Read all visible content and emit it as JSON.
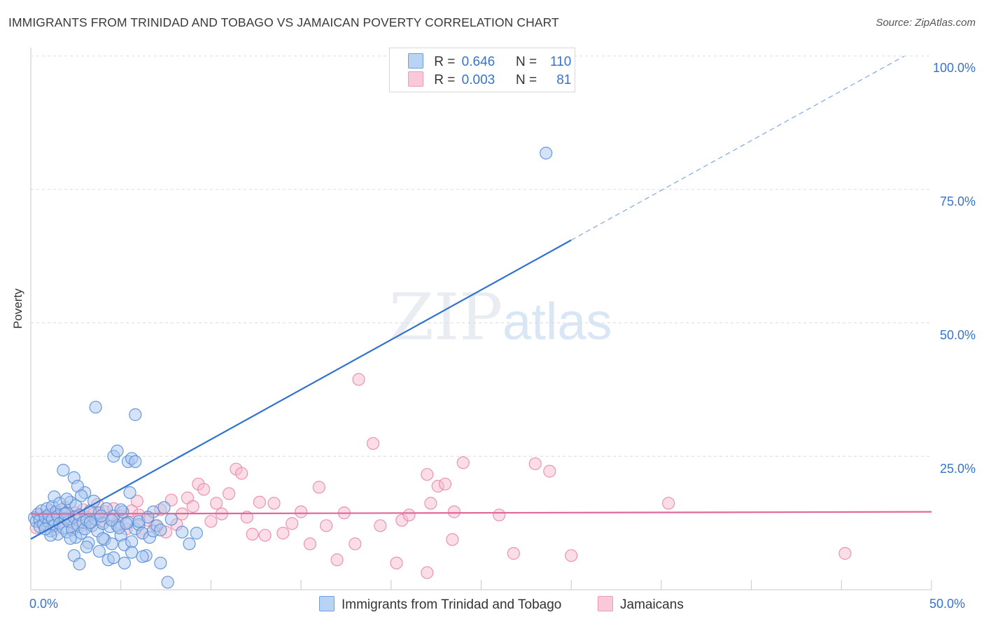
{
  "title": "IMMIGRANTS FROM TRINIDAD AND TOBAGO VS JAMAICAN POVERTY CORRELATION CHART",
  "source": "Source: ZipAtlas.com",
  "watermark": {
    "zip": "ZIP",
    "atlas": "atlas"
  },
  "legend": {
    "rows": [
      {
        "r_key": "R =",
        "r_value": "0.646",
        "n_key": "N =",
        "n_value": "110"
      },
      {
        "r_key": "R =",
        "r_value": "0.003",
        "n_key": "N =",
        "n_value": "81"
      }
    ]
  },
  "bottom_legend": [
    "Immigrants from Trinidad and Tobago",
    "Jamaicans"
  ],
  "colors": {
    "blue_fill": "#a9c8f0",
    "blue_stroke": "#5a8fd6",
    "blue_line": "#2f72cf",
    "pink_fill": "#f6bcd0",
    "pink_stroke": "#e88aaa",
    "pink_line": "#e0699a",
    "axis_text": "#3473cf",
    "grid": "#dcdcdc"
  },
  "chart_data": {
    "type": "scatter",
    "title": "IMMIGRANTS FROM TRINIDAD AND TOBAGO VS JAMAICAN POVERTY CORRELATION CHART",
    "xlabel": "",
    "ylabel": "Poverty",
    "xlim": [
      0,
      50
    ],
    "ylim": [
      0,
      100
    ],
    "x_ticks": [
      "0.0%",
      "50.0%"
    ],
    "y_ticks": [
      "25.0%",
      "50.0%",
      "75.0%",
      "100.0%"
    ],
    "grid": true,
    "legend_position": "top-center",
    "series": [
      {
        "name": "Immigrants from Trinidad and Tobago",
        "R": 0.646,
        "N": 110,
        "trend": {
          "x0": 0,
          "y0": 9.5,
          "x1": 30,
          "y1": 65.5,
          "dashed_to_x": 48.5,
          "dashed_to_y": 100
        },
        "points": [
          [
            0.2,
            13.5
          ],
          [
            0.3,
            12.8
          ],
          [
            0.4,
            14.2
          ],
          [
            0.5,
            13.0
          ],
          [
            0.5,
            11.8
          ],
          [
            0.6,
            14.8
          ],
          [
            0.7,
            12.2
          ],
          [
            0.8,
            13.6
          ],
          [
            0.9,
            15.2
          ],
          [
            1.0,
            12.6
          ],
          [
            1.0,
            14.0
          ],
          [
            1.1,
            11.0
          ],
          [
            1.2,
            13.2
          ],
          [
            1.2,
            15.6
          ],
          [
            1.3,
            12.0
          ],
          [
            1.4,
            14.6
          ],
          [
            1.5,
            10.4
          ],
          [
            1.5,
            13.8
          ],
          [
            1.6,
            12.4
          ],
          [
            1.7,
            15.0
          ],
          [
            1.8,
            11.6
          ],
          [
            1.9,
            13.4
          ],
          [
            2.0,
            10.8
          ],
          [
            2.0,
            14.4
          ],
          [
            2.1,
            12.8
          ],
          [
            2.2,
            16.4
          ],
          [
            2.3,
            11.2
          ],
          [
            2.4,
            13.6
          ],
          [
            2.5,
            9.8
          ],
          [
            2.5,
            15.8
          ],
          [
            2.6,
            12.2
          ],
          [
            2.7,
            14.0
          ],
          [
            2.8,
            10.6
          ],
          [
            2.9,
            12.6
          ],
          [
            3.0,
            11.4
          ],
          [
            3.0,
            18.2
          ],
          [
            3.1,
            13.0
          ],
          [
            3.2,
            8.8
          ],
          [
            3.3,
            14.8
          ],
          [
            3.4,
            12.0
          ],
          [
            1.3,
            17.4
          ],
          [
            1.6,
            16.2
          ],
          [
            2.0,
            17.0
          ],
          [
            1.8,
            22.4
          ],
          [
            2.4,
            21.0
          ],
          [
            2.6,
            19.4
          ],
          [
            2.8,
            17.6
          ],
          [
            3.5,
            16.6
          ],
          [
            3.6,
            13.2
          ],
          [
            3.7,
            11.0
          ],
          [
            3.8,
            14.4
          ],
          [
            4.0,
            12.4
          ],
          [
            4.1,
            9.4
          ],
          [
            4.2,
            15.2
          ],
          [
            4.4,
            11.8
          ],
          [
            4.5,
            8.6
          ],
          [
            4.6,
            13.8
          ],
          [
            4.8,
            12.0
          ],
          [
            5.0,
            10.2
          ],
          [
            5.1,
            14.6
          ],
          [
            5.2,
            8.4
          ],
          [
            5.4,
            12.6
          ],
          [
            5.5,
            18.2
          ],
          [
            5.6,
            9.0
          ],
          [
            5.8,
            11.4
          ],
          [
            6.0,
            12.2
          ],
          [
            6.2,
            10.6
          ],
          [
            6.4,
            6.4
          ],
          [
            6.6,
            9.8
          ],
          [
            6.8,
            11.0
          ],
          [
            4.6,
            25.0
          ],
          [
            4.8,
            26.0
          ],
          [
            5.4,
            24.0
          ],
          [
            5.6,
            24.6
          ],
          [
            5.8,
            24.0
          ],
          [
            3.6,
            34.2
          ],
          [
            5.8,
            32.8
          ],
          [
            2.4,
            6.4
          ],
          [
            2.7,
            4.8
          ],
          [
            3.8,
            7.2
          ],
          [
            4.3,
            5.6
          ],
          [
            4.6,
            6.0
          ],
          [
            5.2,
            5.0
          ],
          [
            5.6,
            7.0
          ],
          [
            6.2,
            6.2
          ],
          [
            7.2,
            5.0
          ],
          [
            7.6,
            1.4
          ],
          [
            3.1,
            8.0
          ],
          [
            4.0,
            9.6
          ],
          [
            4.5,
            13.0
          ],
          [
            5.0,
            15.0
          ],
          [
            6.0,
            12.8
          ],
          [
            6.8,
            14.6
          ],
          [
            7.0,
            12.0
          ],
          [
            7.4,
            15.4
          ],
          [
            7.8,
            13.2
          ],
          [
            8.4,
            10.8
          ],
          [
            8.8,
            8.6
          ],
          [
            9.2,
            10.6
          ],
          [
            7.2,
            11.2
          ],
          [
            3.3,
            12.6
          ],
          [
            3.9,
            13.8
          ],
          [
            4.9,
            11.6
          ],
          [
            5.3,
            12.4
          ],
          [
            6.5,
            13.6
          ],
          [
            2.2,
            9.6
          ],
          [
            1.1,
            10.2
          ],
          [
            0.8,
            11.4
          ],
          [
            1.9,
            14.2
          ],
          [
            28.6,
            81.8
          ]
        ]
      },
      {
        "name": "Jamaicans",
        "R": 0.003,
        "N": 81,
        "trend": {
          "x0": 0,
          "y0": 14.2,
          "x1": 50,
          "y1": 14.6
        },
        "points": [
          [
            0.3,
            11.6
          ],
          [
            0.5,
            14.0
          ],
          [
            0.7,
            13.0
          ],
          [
            0.9,
            12.2
          ],
          [
            1.1,
            14.8
          ],
          [
            1.3,
            11.2
          ],
          [
            1.5,
            13.6
          ],
          [
            1.7,
            12.8
          ],
          [
            1.9,
            15.4
          ],
          [
            2.1,
            13.2
          ],
          [
            2.3,
            12.0
          ],
          [
            2.5,
            14.4
          ],
          [
            2.7,
            11.8
          ],
          [
            2.9,
            15.0
          ],
          [
            3.1,
            13.6
          ],
          [
            3.3,
            12.4
          ],
          [
            3.5,
            14.2
          ],
          [
            3.7,
            16.0
          ],
          [
            3.9,
            12.8
          ],
          [
            4.1,
            14.6
          ],
          [
            4.3,
            13.4
          ],
          [
            4.6,
            15.2
          ],
          [
            4.8,
            12.6
          ],
          [
            5.0,
            13.8
          ],
          [
            5.3,
            11.4
          ],
          [
            5.6,
            14.8
          ],
          [
            5.9,
            16.6
          ],
          [
            6.2,
            10.6
          ],
          [
            6.5,
            13.0
          ],
          [
            6.9,
            12.0
          ],
          [
            7.2,
            15.0
          ],
          [
            7.5,
            10.8
          ],
          [
            7.8,
            16.8
          ],
          [
            8.1,
            12.2
          ],
          [
            8.4,
            14.2
          ],
          [
            8.7,
            17.2
          ],
          [
            9.0,
            15.6
          ],
          [
            9.3,
            19.8
          ],
          [
            9.6,
            18.8
          ],
          [
            10.0,
            12.8
          ],
          [
            10.3,
            16.2
          ],
          [
            10.6,
            14.2
          ],
          [
            11.0,
            18.0
          ],
          [
            11.4,
            22.6
          ],
          [
            11.7,
            21.8
          ],
          [
            12.0,
            13.6
          ],
          [
            12.3,
            10.4
          ],
          [
            12.7,
            16.4
          ],
          [
            13.0,
            10.2
          ],
          [
            13.5,
            16.2
          ],
          [
            14.0,
            10.6
          ],
          [
            14.5,
            12.4
          ],
          [
            15.0,
            14.6
          ],
          [
            15.5,
            8.6
          ],
          [
            16.0,
            19.2
          ],
          [
            16.4,
            12.0
          ],
          [
            17.0,
            5.6
          ],
          [
            17.4,
            14.4
          ],
          [
            18.0,
            8.6
          ],
          [
            18.2,
            39.4
          ],
          [
            19.0,
            27.4
          ],
          [
            19.4,
            12.0
          ],
          [
            20.3,
            5.0
          ],
          [
            20.6,
            13.0
          ],
          [
            21.0,
            14.0
          ],
          [
            22.0,
            3.2
          ],
          [
            22.0,
            21.6
          ],
          [
            22.2,
            16.2
          ],
          [
            22.6,
            19.4
          ],
          [
            23.0,
            19.8
          ],
          [
            23.4,
            9.4
          ],
          [
            23.5,
            14.6
          ],
          [
            24.0,
            23.8
          ],
          [
            26.0,
            14.0
          ],
          [
            26.8,
            6.8
          ],
          [
            28.0,
            23.6
          ],
          [
            28.8,
            22.2
          ],
          [
            30.0,
            6.4
          ],
          [
            35.4,
            16.2
          ],
          [
            45.2,
            6.8
          ],
          [
            6.0,
            14.0
          ]
        ]
      }
    ]
  }
}
